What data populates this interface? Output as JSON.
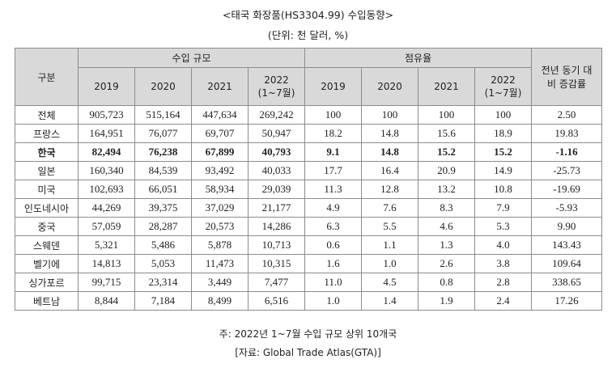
{
  "title": "<태국 화장품(HS3304.99) 수입동향>",
  "unit": "(단위: 천 달러, %)",
  "table": {
    "header": {
      "category": "구분",
      "import_group": "수입 규모",
      "share_group": "점유율",
      "change_line1": "전년 동기 대",
      "change_line2": "비 증감률",
      "years": [
        "2019",
        "2020",
        "2021",
        "2022"
      ],
      "period_note": "(1~7월)"
    },
    "rows": [
      {
        "name": "전체",
        "imports": [
          "905,723",
          "515,164",
          "447,634",
          "269,242"
        ],
        "shares": [
          "100",
          "100",
          "100",
          "100"
        ],
        "change": "2.50"
      },
      {
        "name": "프랑스",
        "imports": [
          "164,951",
          "76,077",
          "69,707",
          "50,947"
        ],
        "shares": [
          "18.2",
          "14.8",
          "15.6",
          "18.9"
        ],
        "change": "19.83"
      },
      {
        "name": "한국",
        "imports": [
          "82,494",
          "76,238",
          "67,899",
          "40,793"
        ],
        "shares": [
          "9.1",
          "14.8",
          "15.2",
          "15.2"
        ],
        "change": "-1.16",
        "highlight": true
      },
      {
        "name": "일본",
        "imports": [
          "160,340",
          "84,539",
          "93,492",
          "40,033"
        ],
        "shares": [
          "17.7",
          "16.4",
          "20.9",
          "14.9"
        ],
        "change": "-25.73"
      },
      {
        "name": "미국",
        "imports": [
          "102,693",
          "66,051",
          "58,934",
          "29,039"
        ],
        "shares": [
          "11.3",
          "12.8",
          "13.2",
          "10.8"
        ],
        "change": "-19.69"
      },
      {
        "name": "인도네시아",
        "imports": [
          "44,269",
          "39,375",
          "37,029",
          "21,177"
        ],
        "shares": [
          "4.9",
          "7.6",
          "8.3",
          "7.9"
        ],
        "change": "-5.93"
      },
      {
        "name": "중국",
        "imports": [
          "57,059",
          "28,287",
          "20,573",
          "14,286"
        ],
        "shares": [
          "6.3",
          "5.5",
          "4.6",
          "5.3"
        ],
        "change": "9.90"
      },
      {
        "name": "스웨덴",
        "imports": [
          "5,321",
          "5,486",
          "5,878",
          "10,713"
        ],
        "shares": [
          "0.6",
          "1.1",
          "1.3",
          "4.0"
        ],
        "change": "143.43"
      },
      {
        "name": "벨기에",
        "imports": [
          "14,813",
          "5,053",
          "11,473",
          "10,315"
        ],
        "shares": [
          "1.6",
          "1.0",
          "2.6",
          "3.8"
        ],
        "change": "109.64"
      },
      {
        "name": "싱가포르",
        "imports": [
          "99,715",
          "23,314",
          "3,449",
          "7,477"
        ],
        "shares": [
          "11.0",
          "4.5",
          "0.8",
          "2.8"
        ],
        "change": "338.65"
      },
      {
        "name": "베트남",
        "imports": [
          "8,844",
          "7,184",
          "8,499",
          "6,516"
        ],
        "shares": [
          "1.0",
          "1.4",
          "1.9",
          "2.4"
        ],
        "change": "17.26"
      }
    ]
  },
  "note": "주: 2022년 1~7월 수입 규모 상위 10개국",
  "source": "[자료: Global Trade Atlas(GTA)]"
}
